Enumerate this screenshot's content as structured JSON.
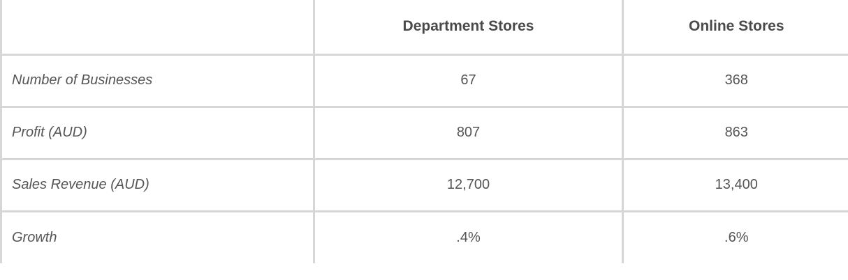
{
  "table": {
    "columns": [
      "",
      "Department Stores",
      "Online Stores"
    ],
    "rows": [
      {
        "label": "Number of Businesses",
        "department": "67",
        "online": "368"
      },
      {
        "label": "Profit (AUD)",
        "department": "807",
        "online": "863"
      },
      {
        "label": "Sales Revenue (AUD)",
        "department": "12,700",
        "online": "13,400"
      },
      {
        "label": "Growth",
        "department": ".4%",
        "online": ".6%"
      }
    ]
  }
}
